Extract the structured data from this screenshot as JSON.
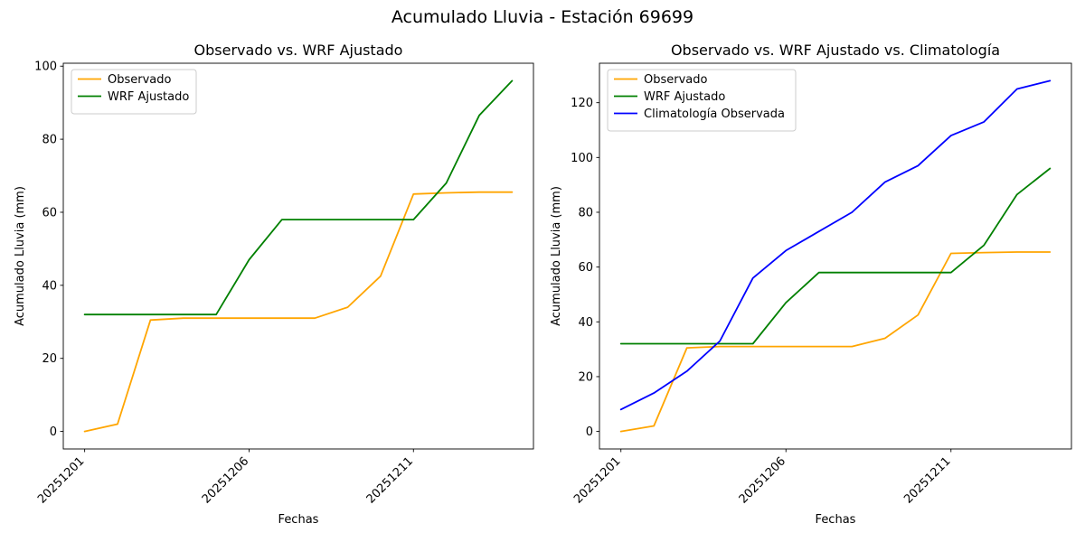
{
  "figure_title": "Acumulado Lluvia - Estación 69699",
  "chart_data": [
    {
      "type": "line",
      "title": "Observado vs. WRF Ajustado",
      "xlabel": "Fechas",
      "ylabel": "Acumulado Lluvia (mm)",
      "x": [
        "20251201",
        "20251202",
        "20251203",
        "20251204",
        "20251205",
        "20251206",
        "20251207",
        "20251208",
        "20251209",
        "20251210",
        "20251211",
        "20251212",
        "20251213",
        "20251214"
      ],
      "xtick_labels": [
        "20251201",
        "20251206",
        "20251211"
      ],
      "yticks": [
        0,
        20,
        40,
        60,
        80,
        100
      ],
      "ylim": [
        -4.8,
        100.8
      ],
      "grid": false,
      "legend_position": "upper left",
      "series": [
        {
          "name": "Observado",
          "color": "#FFA500",
          "values": [
            0,
            2,
            30.5,
            31,
            31,
            31,
            31,
            31,
            34,
            42.5,
            65,
            65.3,
            65.5,
            65.5
          ]
        },
        {
          "name": "WRF Ajustado",
          "color": "#008000",
          "values": [
            32,
            32,
            32,
            32,
            32,
            47,
            58,
            58,
            58,
            58,
            58,
            68,
            86.5,
            96
          ]
        }
      ]
    },
    {
      "type": "line",
      "title": "Observado vs. WRF Ajustado vs. Climatología",
      "xlabel": "Fechas",
      "ylabel": "Acumulado Lluvia (mm)",
      "x": [
        "20251201",
        "20251202",
        "20251203",
        "20251204",
        "20251205",
        "20251206",
        "20251207",
        "20251208",
        "20251209",
        "20251210",
        "20251211",
        "20251212",
        "20251213",
        "20251214"
      ],
      "xtick_labels": [
        "20251201",
        "20251206",
        "20251211"
      ],
      "yticks": [
        0,
        20,
        40,
        60,
        80,
        100,
        120
      ],
      "ylim": [
        -6.4,
        134.4
      ],
      "grid": false,
      "legend_position": "upper left",
      "series": [
        {
          "name": "Observado",
          "color": "#FFA500",
          "values": [
            0,
            2,
            30.5,
            31,
            31,
            31,
            31,
            31,
            34,
            42.5,
            65,
            65.3,
            65.5,
            65.5
          ]
        },
        {
          "name": "WRF Ajustado",
          "color": "#008000",
          "values": [
            32,
            32,
            32,
            32,
            32,
            47,
            58,
            58,
            58,
            58,
            58,
            68,
            86.5,
            96
          ]
        },
        {
          "name": "Climatología Observada",
          "color": "#0000FF",
          "values": [
            8,
            14,
            22,
            33,
            56,
            66,
            73,
            80,
            91,
            97,
            108,
            113,
            125,
            128
          ]
        }
      ]
    }
  ]
}
